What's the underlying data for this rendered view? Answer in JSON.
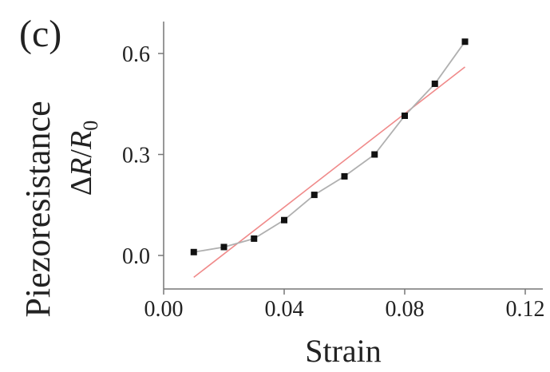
{
  "chart_data": {
    "type": "scatter",
    "panel_label": "(c)",
    "xlabel": "Strain",
    "ylabel": {
      "line1": "Piezoresistance",
      "math": {
        "delta": "Δ",
        "R": "R",
        "slash": "/",
        "R0_base": "R",
        "R0_sub": "0"
      }
    },
    "xlim": [
      0.0,
      0.12
    ],
    "ylim": [
      -0.1,
      0.7
    ],
    "x_ticks": [
      {
        "value": 0.0,
        "label": "0.00"
      },
      {
        "value": 0.04,
        "label": "0.04"
      },
      {
        "value": 0.08,
        "label": "0.08"
      },
      {
        "value": 0.12,
        "label": "0.12"
      }
    ],
    "y_ticks": [
      {
        "value": 0.0,
        "label": "0.0"
      },
      {
        "value": 0.3,
        "label": "0.3"
      },
      {
        "value": 0.6,
        "label": "0.6"
      }
    ],
    "series": [
      {
        "x": [
          0.01,
          0.02,
          0.03,
          0.04,
          0.05,
          0.06,
          0.07,
          0.08,
          0.09,
          0.1
        ],
        "y": [
          0.01,
          0.025,
          0.05,
          0.105,
          0.18,
          0.235,
          0.3,
          0.415,
          0.51,
          0.635
        ],
        "marker": "square",
        "marker_color": "#111111",
        "line_color": "#b0b0b0"
      }
    ],
    "fit_line": {
      "x": [
        0.01,
        0.1
      ],
      "y": [
        -0.065,
        0.56
      ],
      "color": "#f08a8a"
    },
    "grid": false
  }
}
